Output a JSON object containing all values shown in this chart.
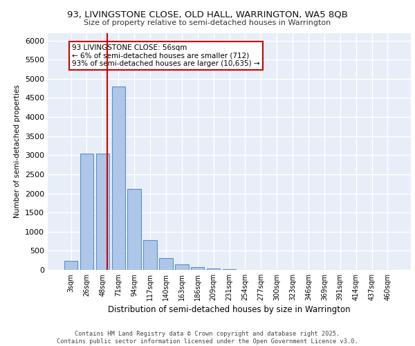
{
  "title_line1": "93, LIVINGSTONE CLOSE, OLD HALL, WARRINGTON, WA5 8QB",
  "title_line2": "Size of property relative to semi-detached houses in Warrington",
  "xlabel": "Distribution of semi-detached houses by size in Warrington",
  "ylabel": "Number of semi-detached properties",
  "bar_labels": [
    "3sqm",
    "26sqm",
    "48sqm",
    "71sqm",
    "94sqm",
    "117sqm",
    "140sqm",
    "163sqm",
    "186sqm",
    "209sqm",
    "231sqm",
    "254sqm",
    "277sqm",
    "300sqm",
    "323sqm",
    "346sqm",
    "369sqm",
    "391sqm",
    "414sqm",
    "437sqm",
    "460sqm"
  ],
  "bar_values": [
    240,
    3050,
    3050,
    4800,
    2120,
    780,
    305,
    140,
    70,
    30,
    15,
    8,
    5,
    3,
    2,
    1,
    1,
    0,
    0,
    0,
    0
  ],
  "bar_color": "#aec6e8",
  "bar_edge_color": "#5b8fc9",
  "background_color": "#e8eef7",
  "grid_color": "#ffffff",
  "vline_color": "#cc0000",
  "vline_x": 2.3,
  "annotation_text": "93 LIVINGSTONE CLOSE: 56sqm\n← 6% of semi-detached houses are smaller (712)\n93% of semi-detached houses are larger (10,635) →",
  "annotation_box_color": "#ffffff",
  "annotation_box_edge": "#cc0000",
  "footer_text": "Contains HM Land Registry data © Crown copyright and database right 2025.\nContains public sector information licensed under the Open Government Licence v3.0.",
  "ylim": [
    0,
    6200
  ],
  "yticks": [
    0,
    500,
    1000,
    1500,
    2000,
    2500,
    3000,
    3500,
    4000,
    4500,
    5000,
    5500,
    6000
  ]
}
